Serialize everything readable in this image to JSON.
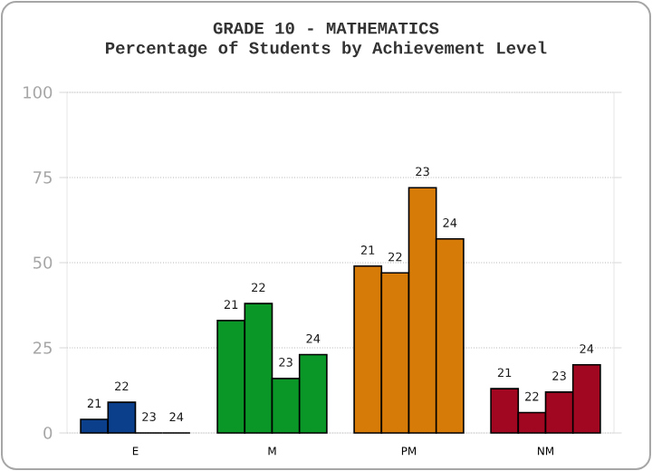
{
  "chart_data": {
    "type": "bar",
    "title": "GRADE 10 - MATHEMATICS",
    "subtitle": "Percentage of Students by Achievement Level",
    "categories": [
      "E",
      "M",
      "PM",
      "NM"
    ],
    "series": [
      {
        "name": "21",
        "colors": [
          "#0b3f8c",
          "#0b9628",
          "#d67a08",
          "#a10720"
        ],
        "values": [
          4,
          33,
          49,
          13
        ]
      },
      {
        "name": "22",
        "colors": [
          "#0b3f8c",
          "#0b9628",
          "#d67a08",
          "#a10720"
        ],
        "values": [
          9,
          38,
          47,
          6
        ]
      },
      {
        "name": "23",
        "colors": [
          "#0b3f8c",
          "#0b9628",
          "#d67a08",
          "#a10720"
        ],
        "values": [
          0,
          16,
          72,
          12
        ]
      },
      {
        "name": "24",
        "colors": [
          "#0b3f8c",
          "#0b9628",
          "#d67a08",
          "#a10720"
        ],
        "values": [
          0,
          23,
          57,
          20
        ]
      }
    ],
    "ylim": [
      0,
      100
    ],
    "yticks": [
      0,
      25,
      50,
      75,
      100
    ],
    "grid": "y"
  }
}
